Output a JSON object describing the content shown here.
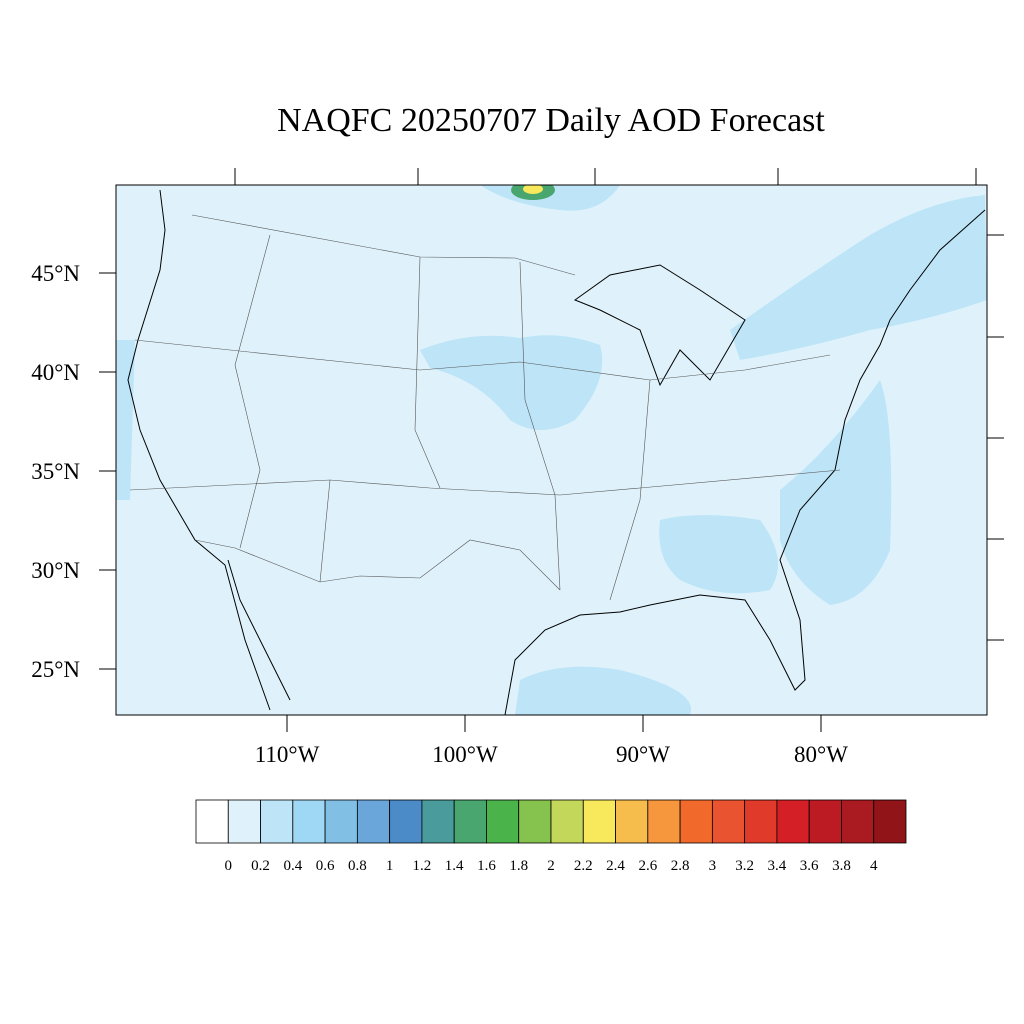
{
  "title": "NAQFC 20250707 Daily AOD Forecast",
  "lat_labels": [
    {
      "value": 45,
      "label": "45°N"
    },
    {
      "value": 40,
      "label": "40°N"
    },
    {
      "value": 35,
      "label": "35°N"
    },
    {
      "value": 30,
      "label": "30°N"
    },
    {
      "value": 25,
      "label": "25°N"
    }
  ],
  "lon_labels": [
    {
      "value": -110,
      "label": "110°W"
    },
    {
      "value": -100,
      "label": "100°W"
    },
    {
      "value": -90,
      "label": "90°W"
    },
    {
      "value": -80,
      "label": "80°W"
    }
  ],
  "colorbar": {
    "colors": [
      "#ffffff",
      "#dff2fb",
      "#bde5f7",
      "#9fd8f4",
      "#82bfe5",
      "#6aa6da",
      "#4a8bc8",
      "#4a9b9b",
      "#48a66e",
      "#4ab34a",
      "#85c24e",
      "#c3d75a",
      "#f7e85c",
      "#f6bd4d",
      "#f6963d",
      "#f16a2c",
      "#ea5330",
      "#e03a2b",
      "#d41f26",
      "#bd1b24",
      "#a91b20",
      "#901418"
    ],
    "levels": [
      0,
      0.2,
      0.4,
      0.6,
      0.8,
      1,
      1.2,
      1.4,
      1.6,
      1.8,
      2,
      2.2,
      2.4,
      2.6,
      2.8,
      3,
      3.2,
      3.4,
      3.6,
      3.8,
      4
    ]
  }
}
